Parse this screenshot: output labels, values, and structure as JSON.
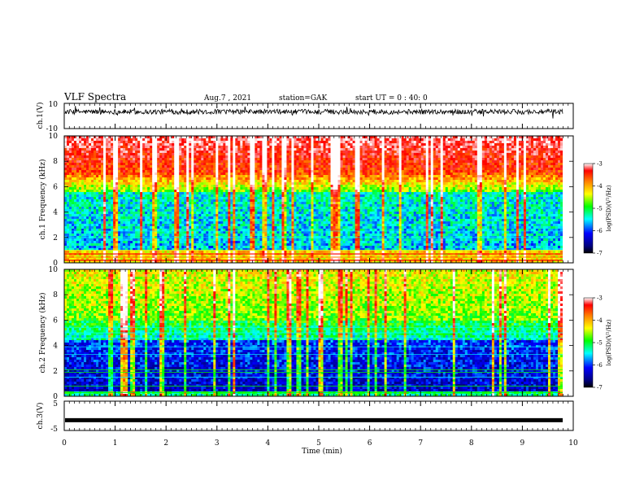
{
  "header": {
    "title": "VLF Spectra",
    "date": "Aug.7 , 2021",
    "station": "station=GAK",
    "start": "start UT = 0 : 40: 0"
  },
  "chart_data": [
    {
      "type": "line",
      "name": "ch1-waveform",
      "ylabel": "ch.1(V)",
      "ylim": [
        -10,
        10
      ],
      "ytick_labels": [
        "10",
        "-10"
      ],
      "xlim": [
        0,
        10
      ],
      "baseline": 3.3,
      "noise_amp": 2.0,
      "spike_amp": 5.0
    },
    {
      "type": "heatmap",
      "name": "ch1-spectrogram",
      "ylabel": "ch.1 Frequency (kHz)",
      "ylim": [
        0,
        10
      ],
      "ytick_labels": [
        "0",
        "2",
        "4",
        "6",
        "8",
        "10"
      ],
      "xlim": [
        0,
        10
      ],
      "log_scale_color": true,
      "colorbar": {
        "label": "log(PSD)(V²/Hz)",
        "range": [
          -7,
          -3
        ],
        "tick_labels": [
          "-3",
          "-4",
          "-5",
          "-6",
          "-7"
        ]
      },
      "bands_khz": [
        {
          "from": 0,
          "to": 1.0,
          "level": "red-green"
        },
        {
          "from": 1.0,
          "to": 5.5,
          "level": "blue-cyan"
        },
        {
          "from": 5.5,
          "to": 7.0,
          "level": "green-yellow"
        },
        {
          "from": 7.0,
          "to": 10,
          "level": "orange-red"
        }
      ]
    },
    {
      "type": "heatmap",
      "name": "ch2-spectrogram",
      "ylabel": "ch.2 Frequency (kHz)",
      "ylim": [
        0,
        10
      ],
      "ytick_labels": [
        "0",
        "2",
        "4",
        "6",
        "8",
        "10"
      ],
      "xlim": [
        0,
        10
      ],
      "log_scale_color": true,
      "colorbar": {
        "label": "log(PSD)(V²/Hz)",
        "range": [
          -7,
          -3
        ],
        "tick_labels": [
          "-3",
          "-4",
          "-5",
          "-6",
          "-7"
        ]
      },
      "bands_khz": [
        {
          "from": 0,
          "to": 0.3,
          "level": "cyan"
        },
        {
          "from": 0.3,
          "to": 4.5,
          "level": "dark-blue"
        },
        {
          "from": 4.5,
          "to": 6.0,
          "level": "cyan-green"
        },
        {
          "from": 6.0,
          "to": 10,
          "level": "green"
        }
      ]
    },
    {
      "type": "line",
      "name": "ch3-waveform",
      "ylabel": "ch.3(V)",
      "ylim": [
        -5,
        5
      ],
      "ytick_labels": [
        "5",
        "-5"
      ],
      "xlim": [
        0,
        10
      ],
      "baseline": -1.5
    }
  ],
  "xaxis": {
    "label": "Time (min)",
    "ticks": [
      0,
      1,
      2,
      3,
      4,
      5,
      6,
      7,
      8,
      9,
      10
    ],
    "tick_labels": [
      "0",
      "1",
      "2",
      "3",
      "4",
      "5",
      "6",
      "7",
      "8",
      "9",
      "10"
    ]
  },
  "colors": {
    "colormap": [
      "#000080",
      "#0000ff",
      "#00ffff",
      "#00ff00",
      "#ffff00",
      "#ff8000",
      "#ff0000",
      "#ffffff"
    ]
  }
}
